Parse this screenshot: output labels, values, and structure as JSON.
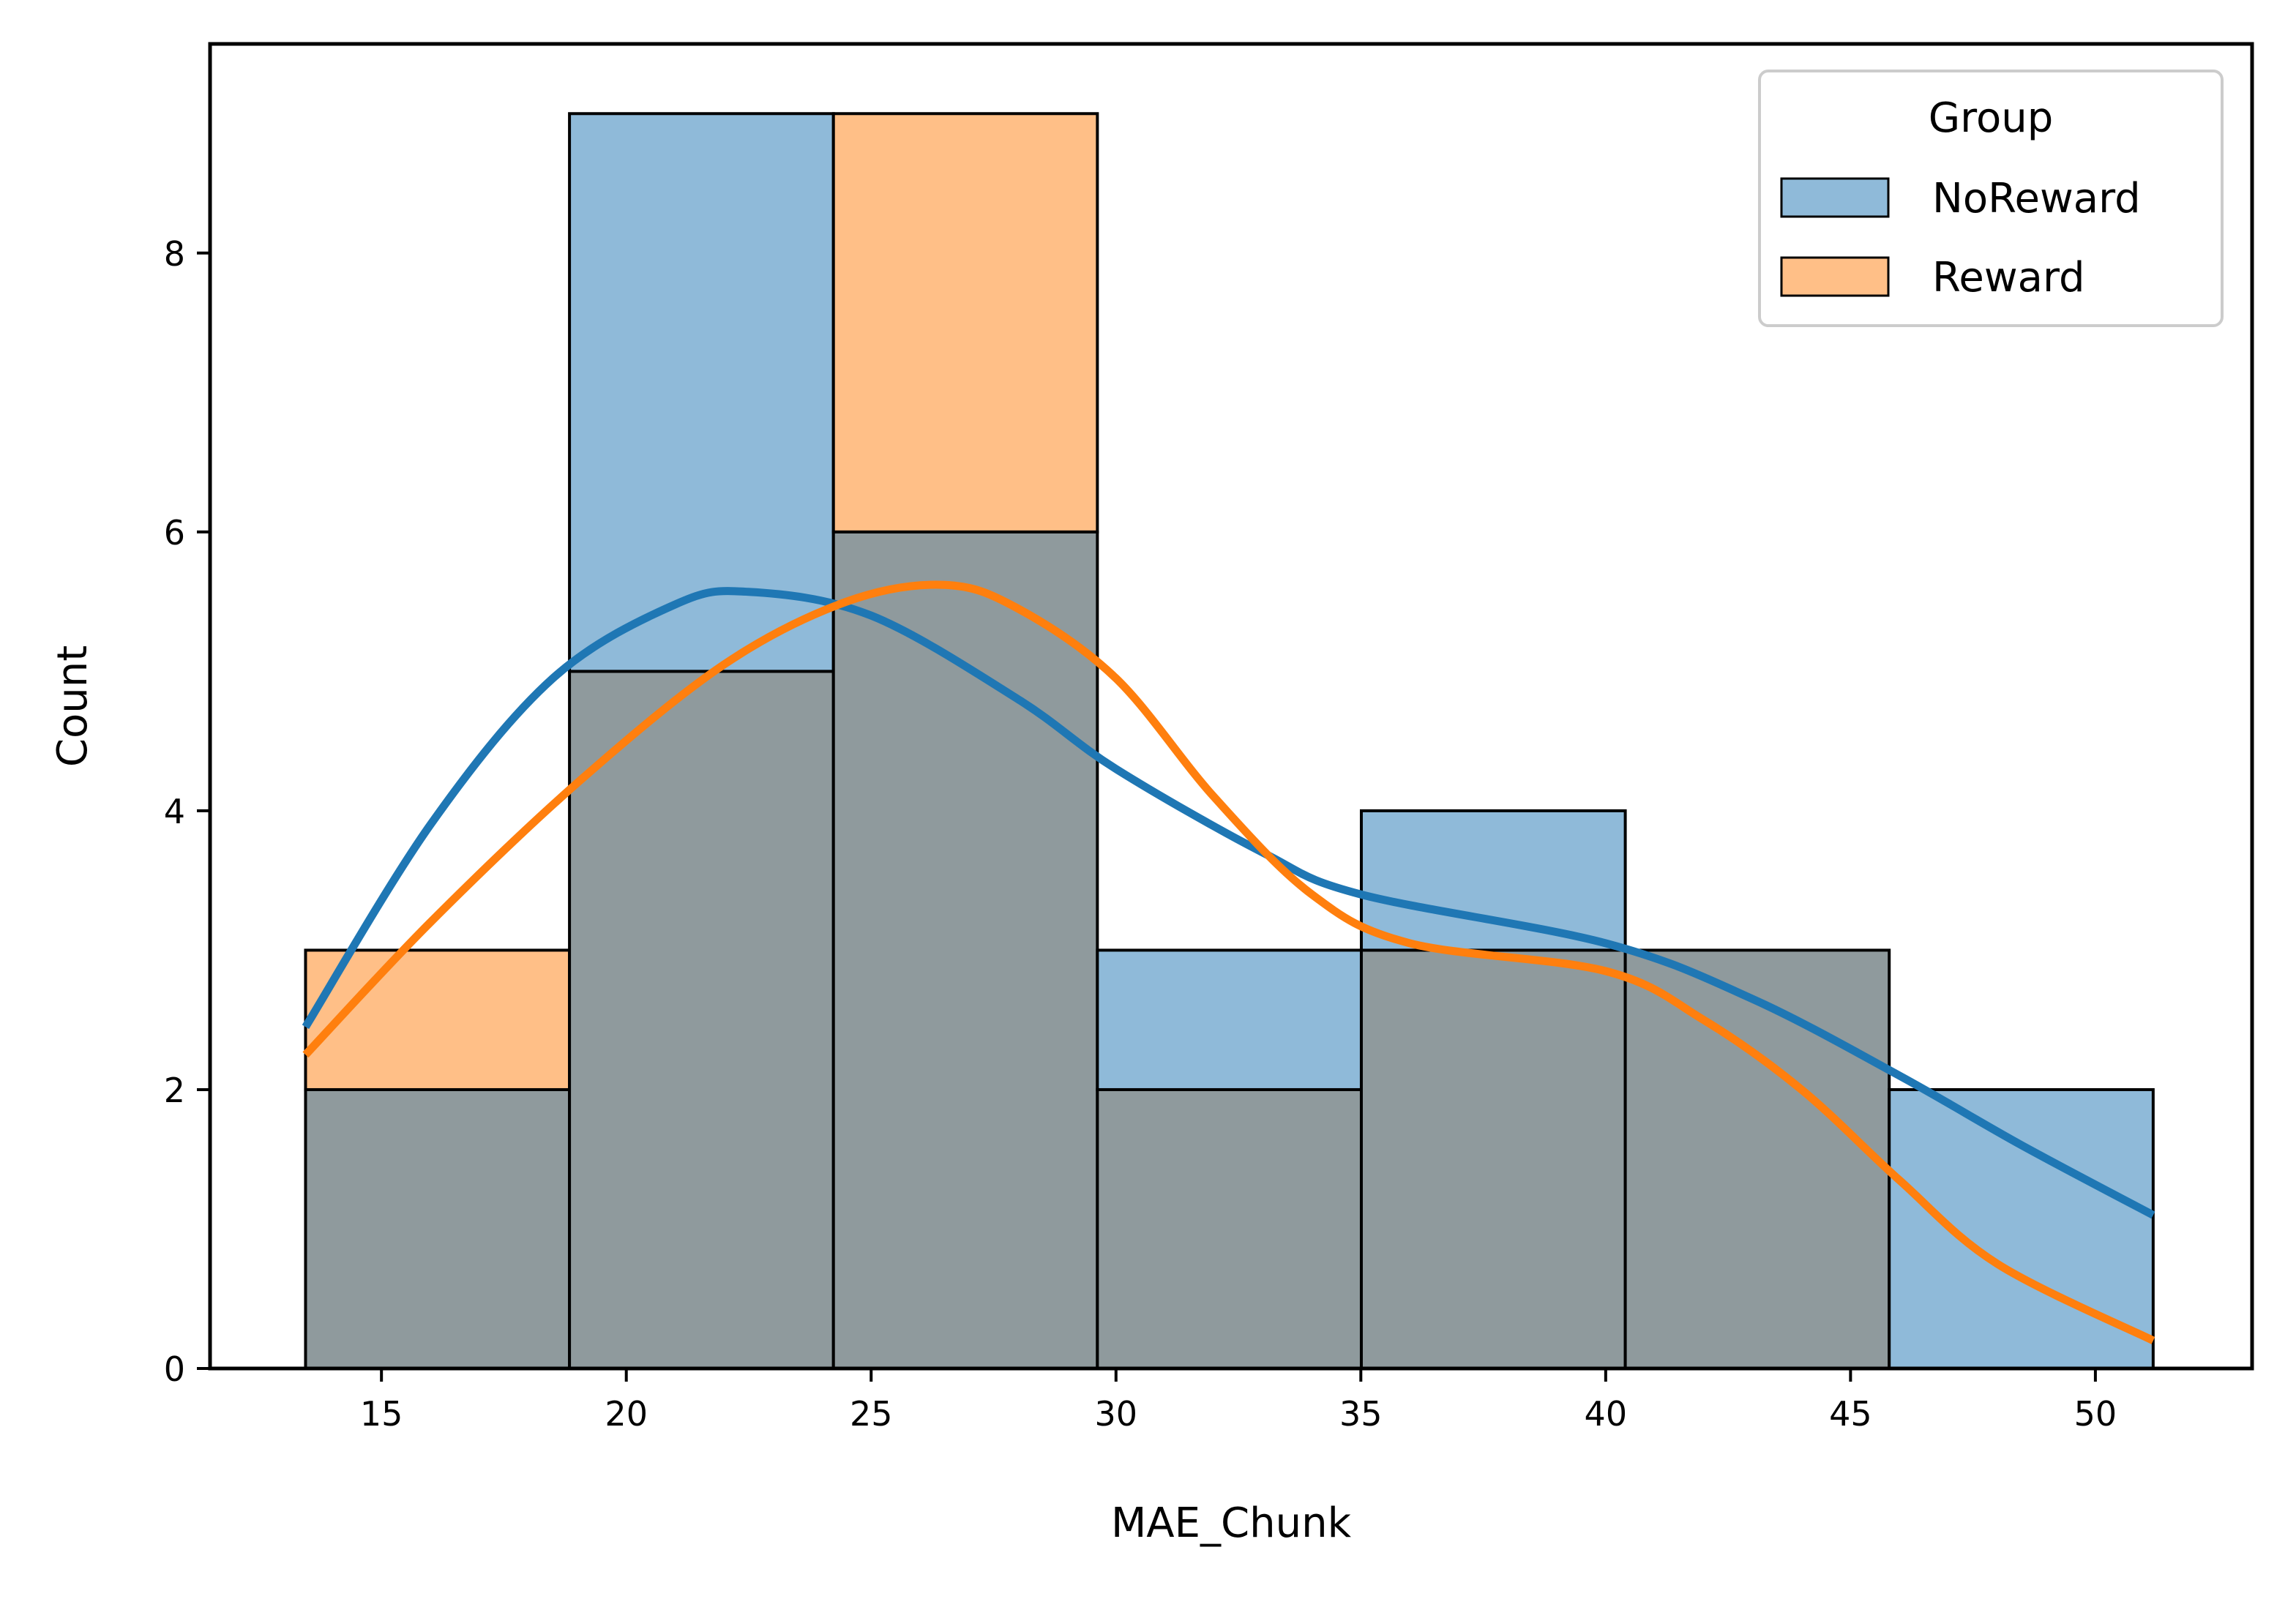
{
  "chart_data": {
    "type": "histogram",
    "xlabel": "MAE_Chunk",
    "ylabel": "Count",
    "xlim": [
      11.5,
      53.2
    ],
    "ylim": [
      0,
      9.5
    ],
    "x_ticks": [
      15,
      20,
      25,
      30,
      35,
      40,
      45,
      50
    ],
    "y_ticks": [
      0,
      2,
      4,
      6,
      8
    ],
    "bin_edges": [
      13.45,
      18.84,
      24.23,
      29.62,
      35.01,
      40.4,
      45.79,
      51.18
    ],
    "legend": {
      "title": "Group",
      "placement": "upper right"
    },
    "series": [
      {
        "name": "NoReward",
        "color": "#1f77b4",
        "fill": "#8fbad9",
        "counts": [
          2,
          9,
          6,
          3,
          4,
          3,
          2
        ],
        "kde": {
          "x": [
            13.45,
            16,
            18.5,
            21,
            22.5,
            25,
            28,
            30,
            33,
            35,
            40,
            43,
            46,
            48.5,
            51.18
          ],
          "y": [
            2.45,
            3.9,
            4.95,
            5.48,
            5.57,
            5.4,
            4.8,
            4.3,
            3.7,
            3.4,
            3.05,
            2.65,
            2.1,
            1.6,
            1.1
          ]
        }
      },
      {
        "name": "Reward",
        "color": "#ff7f0e",
        "fill": "#ffbf87",
        "counts": [
          3,
          5,
          9,
          2,
          3,
          3,
          0
        ],
        "kde": {
          "x": [
            13.45,
            16,
            19,
            22,
            24.5,
            26.5,
            28,
            30,
            32,
            34,
            36,
            40,
            42,
            44,
            46,
            48,
            51.18
          ],
          "y": [
            2.25,
            3.2,
            4.2,
            5.05,
            5.5,
            5.62,
            5.45,
            4.95,
            4.1,
            3.4,
            3.05,
            2.85,
            2.5,
            2.0,
            1.35,
            0.75,
            0.2
          ]
        }
      }
    ],
    "overlap_fill": "#8f9a9d",
    "grid": false
  }
}
